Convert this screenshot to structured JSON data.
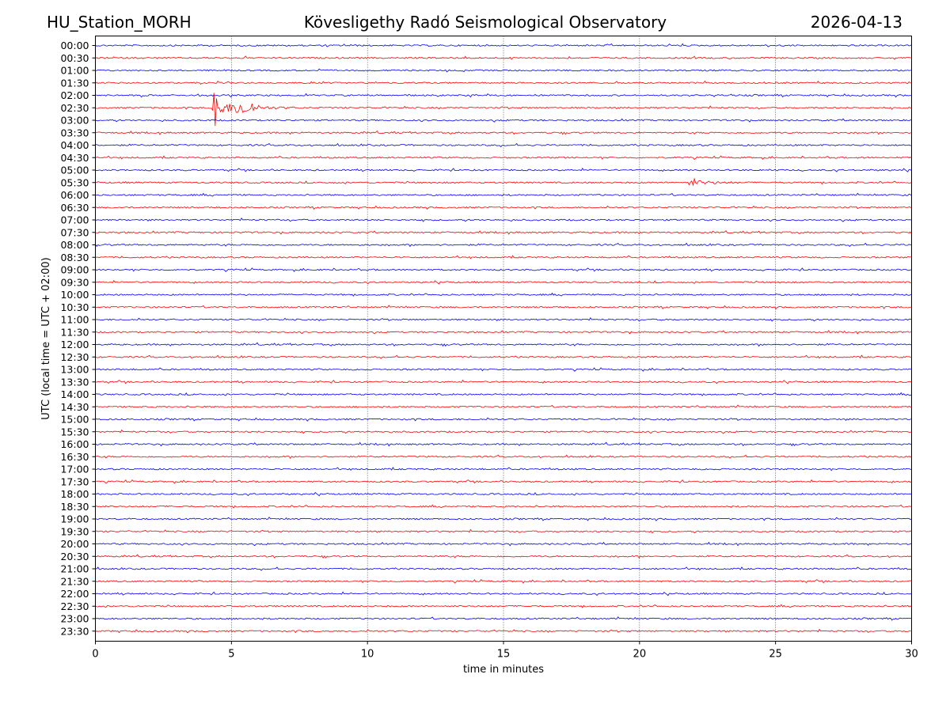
{
  "header": {
    "station": "HU_Station_MORH",
    "observatory": "Kövesligethy Radó Seismological Observatory",
    "date": "2026-04-13"
  },
  "chart_data": {
    "type": "line",
    "title": "Kövesligethy Radó Seismological Observatory",
    "xlabel": "time in minutes",
    "ylabel": "UTC (local time = UTC + 02:00)",
    "xlim": [
      0,
      30
    ],
    "xticks": [
      0,
      5,
      10,
      15,
      20,
      25,
      30
    ],
    "grid": "vertical dotted at 5-minute ticks",
    "colors": [
      "#0000ff",
      "#ff0000"
    ],
    "row_labels": [
      "00:00",
      "00:30",
      "01:00",
      "01:30",
      "02:00",
      "02:30",
      "03:00",
      "03:30",
      "04:00",
      "04:30",
      "05:00",
      "05:30",
      "06:00",
      "06:30",
      "07:00",
      "07:30",
      "08:00",
      "08:30",
      "09:00",
      "09:30",
      "10:00",
      "10:30",
      "11:00",
      "11:30",
      "12:00",
      "12:30",
      "13:00",
      "13:30",
      "14:00",
      "14:30",
      "15:00",
      "15:30",
      "16:00",
      "16:30",
      "17:00",
      "17:30",
      "18:00",
      "18:30",
      "19:00",
      "19:30",
      "20:00",
      "20:30",
      "21:00",
      "21:30",
      "22:00",
      "22:30",
      "23:00",
      "23:30"
    ],
    "events": [
      {
        "row": "02:30",
        "start_min": 4.3,
        "end_min": 7.5,
        "peak_min": 4.4,
        "secondary_min": 5.5,
        "color": "#ff0000",
        "description": "local earthquake"
      },
      {
        "row": "05:30",
        "start_min": 21.8,
        "end_min": 24.0,
        "peak_min": 22.0,
        "color": "#ff0000",
        "description": "small event"
      }
    ]
  }
}
